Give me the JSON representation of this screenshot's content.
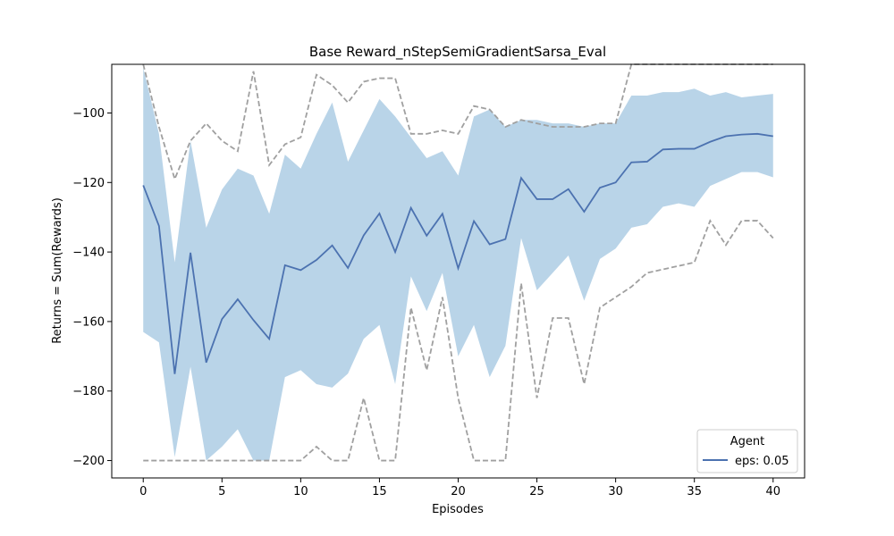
{
  "chart_data": {
    "type": "line",
    "title": "Base Reward_nStepSemiGradientSarsa_Eval",
    "xlabel": "Episodes",
    "ylabel": "Returns = Sum(Rewards)",
    "xlim": [
      -2,
      42
    ],
    "ylim": [
      -205,
      -86
    ],
    "xticks": [
      0,
      5,
      10,
      15,
      20,
      25,
      30,
      35,
      40
    ],
    "yticks": [
      -200,
      -180,
      -160,
      -140,
      -120,
      -100
    ],
    "grid": false,
    "legend": {
      "title": "Agent",
      "placement": "lower-right"
    },
    "x": [
      0,
      1,
      2,
      3,
      4,
      5,
      6,
      7,
      8,
      9,
      10,
      11,
      12,
      13,
      14,
      15,
      16,
      17,
      18,
      19,
      20,
      21,
      22,
      23,
      24,
      25,
      26,
      27,
      28,
      29,
      30,
      31,
      32,
      33,
      34,
      35,
      36,
      37,
      38,
      39,
      40
    ],
    "series": [
      {
        "name": "eps: 0.05",
        "color": "#4c72b0",
        "mean": [
          -120.8,
          -132.5,
          -175.1,
          -140.2,
          -171.8,
          -159.3,
          -153.6,
          -159.6,
          -165.0,
          -143.8,
          -145.2,
          -142.3,
          -138.1,
          -144.6,
          -135.2,
          -128.9,
          -140.0,
          -127.3,
          -135.3,
          -129.0,
          -144.7,
          -131.1,
          -137.8,
          -136.3,
          -118.7,
          -124.8,
          -124.8,
          -121.9,
          -128.4,
          -121.5,
          -120.0,
          -114.2,
          -114.0,
          -110.5,
          -110.3,
          -110.3,
          -108.3,
          -106.7,
          -106.2,
          -106.0,
          -106.7
        ],
        "ci_upper": [
          -87.0,
          -106.0,
          -143.0,
          -108.0,
          -133.0,
          -122.0,
          -116.0,
          -118.0,
          -129.0,
          -112.0,
          -116.0,
          -106.0,
          -97.0,
          -114.0,
          -105.0,
          -96.0,
          -101.0,
          -107.0,
          -113.0,
          -111.0,
          -118.0,
          -101.0,
          -99.0,
          -104.0,
          -102.0,
          -102.0,
          -103.0,
          -103.0,
          -104.0,
          -103.0,
          -103.0,
          -95.0,
          -95.0,
          -94.0,
          -94.0,
          -93.0,
          -95.0,
          -94.0,
          -95.5,
          -95.0,
          -94.5
        ],
        "ci_lower": [
          -163.0,
          -166.0,
          -199.0,
          -173.0,
          -200.0,
          -196.0,
          -191.0,
          -200.0,
          -200.0,
          -176.0,
          -174.0,
          -178.0,
          -179.0,
          -175.0,
          -165.0,
          -161.0,
          -178.0,
          -147.0,
          -157.0,
          -146.0,
          -170.0,
          -161.0,
          -176.0,
          -167.0,
          -136.0,
          -151.0,
          -146.0,
          -141.0,
          -154.0,
          -142.0,
          -139.0,
          -133.0,
          -132.0,
          -127.0,
          -126.0,
          -127.0,
          -121.0,
          -119.0,
          -117.0,
          -117.0,
          -118.5
        ],
        "max": [
          -86.0,
          -104.0,
          -119.0,
          -108.0,
          -103.0,
          -108.0,
          -111.0,
          -88.0,
          -115.0,
          -109.0,
          -107.0,
          -89.0,
          -92.0,
          -97.0,
          -91.0,
          -90.0,
          -90.0,
          -106.0,
          -106.0,
          -105.0,
          -106.0,
          -98.0,
          -99.0,
          -104.0,
          -102.0,
          -103.0,
          -104.0,
          -104.0,
          -104.0,
          -103.0,
          -103.0,
          -86.0,
          -86.0,
          -86.0,
          -86.0,
          -86.0,
          -86.0,
          -86.0,
          -86.0,
          -86.0,
          -86.0
        ],
        "min": [
          -200.0,
          -200.0,
          -200.0,
          -200.0,
          -200.0,
          -200.0,
          -200.0,
          -200.0,
          -200.0,
          -200.0,
          -200.0,
          -196.0,
          -200.0,
          -200.0,
          -182.0,
          -200.0,
          -200.0,
          -156.0,
          -174.0,
          -153.0,
          -182.0,
          -200.0,
          -200.0,
          -200.0,
          -149.0,
          -182.0,
          -159.0,
          -159.0,
          -178.0,
          -156.0,
          -153.0,
          -150.0,
          -146.0,
          -145.0,
          -144.0,
          -143.0,
          -131.0,
          -138.0,
          -131.0,
          -131.0,
          -136.0
        ]
      }
    ],
    "colors": {
      "band": "#b9d4e8",
      "minmax": "#a0a0a0",
      "line": "#4c72b0"
    }
  }
}
